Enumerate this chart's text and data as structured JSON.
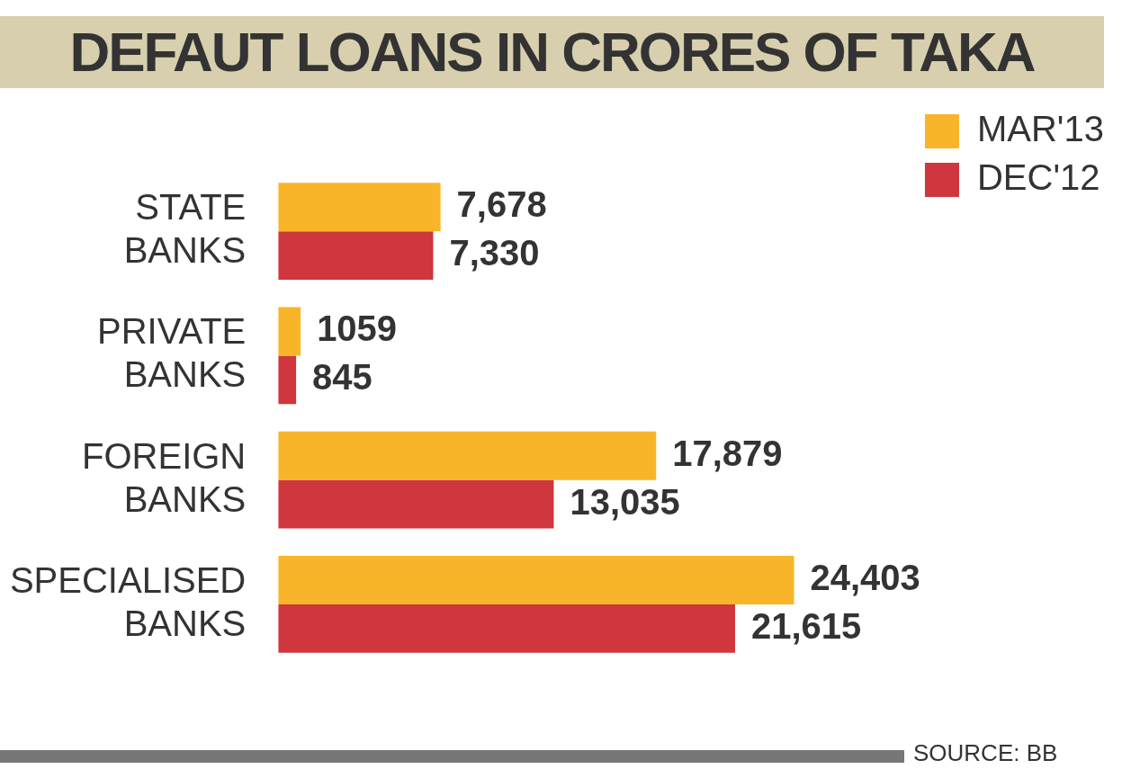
{
  "chart_data": {
    "type": "bar",
    "orientation": "horizontal",
    "title": "DEFAUT LOANS IN CRORES OF TAKA",
    "categories": [
      "STATE BANKS",
      "PRIVATE BANKS",
      "FOREIGN BANKS",
      "SPECIALISED BANKS"
    ],
    "series": [
      {
        "name": "MAR'13",
        "color": "#f9b52a",
        "values": [
          7678,
          1059,
          17879,
          24403
        ],
        "value_labels": [
          "7,678",
          "1059",
          "17,879",
          "24,403"
        ]
      },
      {
        "name": "DEC'12",
        "color": "#cf363d",
        "values": [
          7330,
          845,
          13035,
          21615
        ],
        "value_labels": [
          "7,330",
          "845",
          "13,035",
          "21,615"
        ]
      }
    ],
    "legend": "top right",
    "annotations": [
      "SOURCE: BB"
    ]
  }
}
